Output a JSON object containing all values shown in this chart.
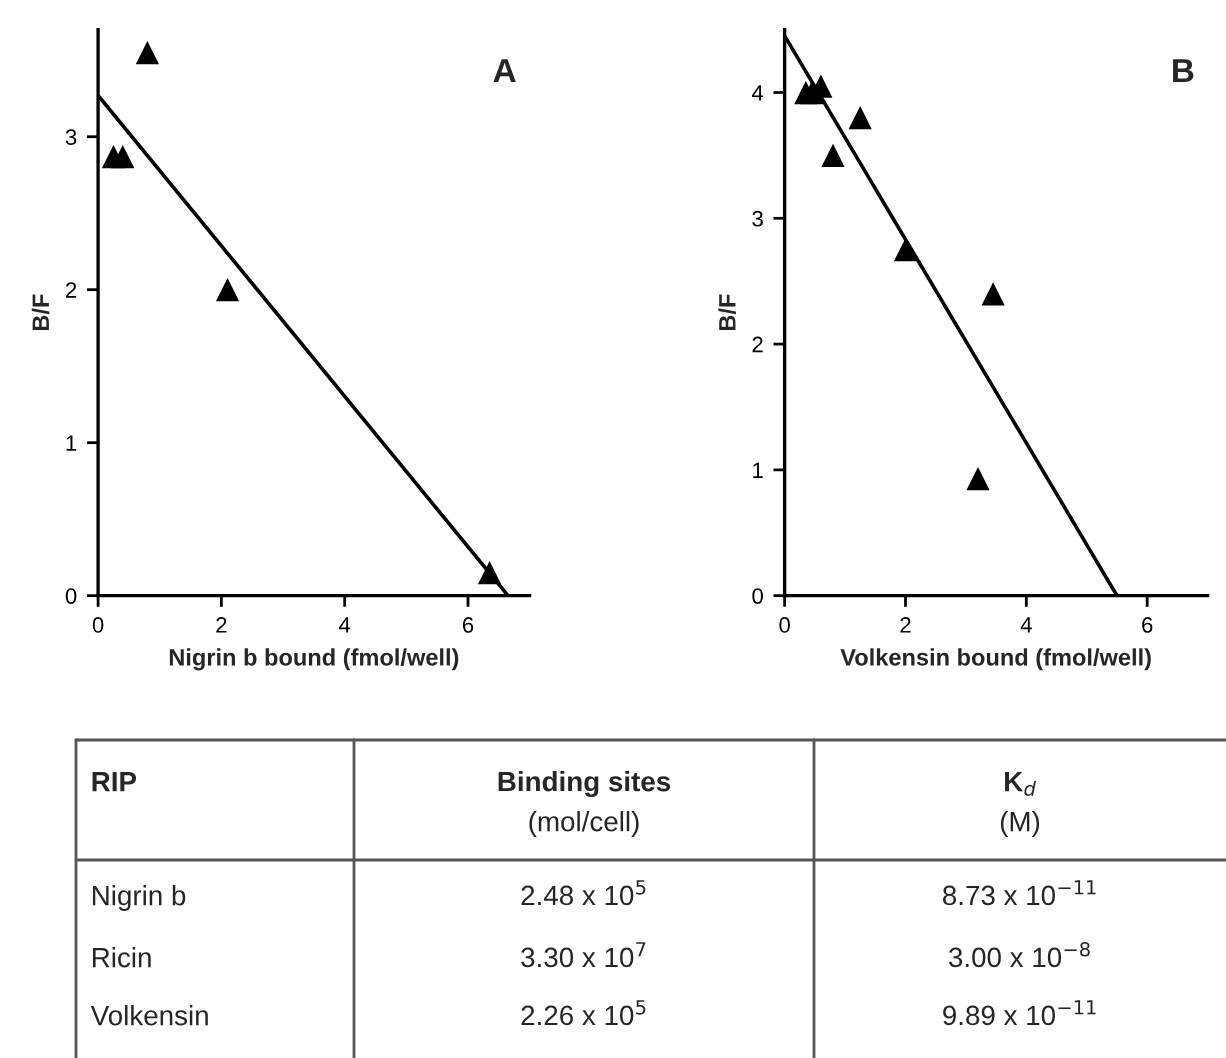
{
  "chart_data": [
    {
      "type": "scatter",
      "title": "A",
      "xlabel": "Nigrin b bound (fmol/well)",
      "ylabel": "B/F",
      "xlim": [
        0,
        7
      ],
      "ylim": [
        0,
        3.7
      ],
      "xticks": [
        0,
        2,
        4,
        6
      ],
      "yticks": [
        0,
        1,
        2,
        3
      ],
      "grid": false,
      "legend": false,
      "series": [
        {
          "type": "scatter",
          "marker": "triangle",
          "color": "#000000",
          "x": [
            0.25,
            0.4,
            0.8,
            2.1,
            6.35
          ],
          "values": [
            2.87,
            2.87,
            3.55,
            2.0,
            0.15
          ]
        },
        {
          "type": "line",
          "marker": "none",
          "color": "#000000",
          "x": [
            0,
            6.65
          ],
          "values": [
            3.27,
            0
          ]
        }
      ]
    },
    {
      "type": "scatter",
      "title": "B",
      "xlabel": "Volkensin bound (fmol/well)",
      "ylabel": "B/F",
      "xlim": [
        0,
        7
      ],
      "ylim": [
        0,
        4.5
      ],
      "xticks": [
        0,
        2,
        4,
        6
      ],
      "yticks": [
        0,
        1,
        2,
        3,
        4
      ],
      "grid": false,
      "legend": false,
      "series": [
        {
          "type": "scatter",
          "marker": "triangle",
          "color": "#000000",
          "x": [
            0.35,
            0.45,
            0.6,
            0.8,
            1.25,
            2.0,
            3.2,
            3.45
          ],
          "values": [
            4.0,
            4.0,
            4.05,
            3.5,
            3.8,
            2.75,
            0.93,
            2.4
          ]
        },
        {
          "type": "line",
          "marker": "none",
          "color": "#000000",
          "x": [
            0,
            5.5
          ],
          "values": [
            4.45,
            0
          ]
        }
      ]
    },
    {
      "type": "other",
      "annotations": [
        "RIP",
        "Binding sites",
        "K$_{d}$",
        "(mol/cell)",
        "(M)",
        "Nigrin b",
        "2.48 x 10$^{5}$",
        "8.73 x 10$^{−11}$",
        "Ricin",
        "3.30 x 10$^{7}$",
        "3.00 x 10$^{−8}$",
        "Volkensin",
        "2.26 x 10$^{5}$",
        "9.89 x 10$^{−11}$"
      ]
    }
  ]
}
